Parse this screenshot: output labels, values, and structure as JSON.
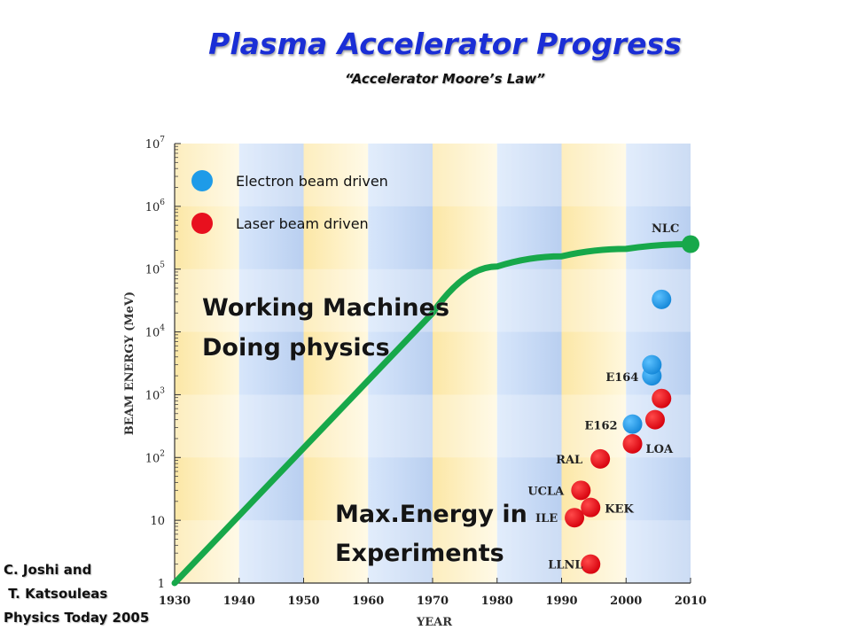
{
  "header": {
    "title": "Plasma Accelerator Progress",
    "subtitle": "“Accelerator Moore’s Law”"
  },
  "credit": {
    "lines": [
      "C. Joshi and",
      " T. Katsouleas",
      "Physics Today 2005"
    ]
  },
  "colors": {
    "electron": "#1e9be8",
    "laser": "#e8101e",
    "trend": "#17a84a",
    "title": "#1a2ed6"
  },
  "chart_data": {
    "type": "scatter",
    "title": "",
    "xlabel": "YEAR",
    "ylabel": "BEAM ENERGY (MeV)",
    "xlim": [
      1930,
      2010
    ],
    "ylim_log10": [
      0,
      7
    ],
    "y_scale": "log",
    "x_ticks": [
      "1930",
      "1940",
      "1950",
      "1960",
      "1970",
      "1980",
      "1990",
      "2000",
      "2010"
    ],
    "y_ticks": [
      {
        "base": "1",
        "exp": ""
      },
      {
        "base": "10",
        "exp": ""
      },
      {
        "base": "10",
        "exp": "2"
      },
      {
        "base": "10",
        "exp": "3"
      },
      {
        "base": "10",
        "exp": "4"
      },
      {
        "base": "10",
        "exp": "5"
      },
      {
        "base": "10",
        "exp": "6"
      },
      {
        "base": "10",
        "exp": "7"
      }
    ],
    "legend": {
      "placement": "top-left",
      "entries": [
        "Electron beam driven",
        "Laser beam driven"
      ]
    },
    "trend_line": {
      "name": "",
      "points": [
        {
          "x": 1930,
          "y": 1
        },
        {
          "x": 1970,
          "y": 20000
        },
        {
          "x": 1980,
          "y": 110000
        },
        {
          "x": 1990,
          "y": 160000
        },
        {
          "x": 2000,
          "y": 210000
        },
        {
          "x": 2010,
          "y": 250000
        }
      ]
    },
    "series": [
      {
        "name": "Electron beam driven",
        "points": [
          {
            "x": 2001,
            "y": 340,
            "label": "E162"
          },
          {
            "x": 2004,
            "y": 2000,
            "label": "E164"
          },
          {
            "x": 2004,
            "y": 3000,
            "label": ""
          },
          {
            "x": 2005.5,
            "y": 33000,
            "label": ""
          }
        ]
      },
      {
        "name": "Laser beam driven",
        "points": [
          {
            "x": 1994.5,
            "y": 2,
            "label": "LLNL"
          },
          {
            "x": 1992,
            "y": 11,
            "label": "ILE"
          },
          {
            "x": 1993,
            "y": 30,
            "label": "UCLA"
          },
          {
            "x": 1994.5,
            "y": 16,
            "label": "KEK"
          },
          {
            "x": 1996,
            "y": 95,
            "label": "RAL"
          },
          {
            "x": 2001,
            "y": 165,
            "label": "LOA"
          },
          {
            "x": 2004.5,
            "y": 400,
            "label": ""
          },
          {
            "x": 2005.5,
            "y": 870,
            "label": ""
          }
        ]
      }
    ],
    "annotations": [
      {
        "text": "NLC",
        "x": 2008,
        "y": 500000
      },
      {
        "text": "Working Machines",
        "x": 1934,
        "y": 40000
      },
      {
        "text": "Doing physics",
        "x": 1934,
        "y": 12000
      },
      {
        "text": "Max.Energy in",
        "x": 1956,
        "y": 17
      },
      {
        "text": "Experiments",
        "x": 1956,
        "y": 5
      }
    ]
  }
}
